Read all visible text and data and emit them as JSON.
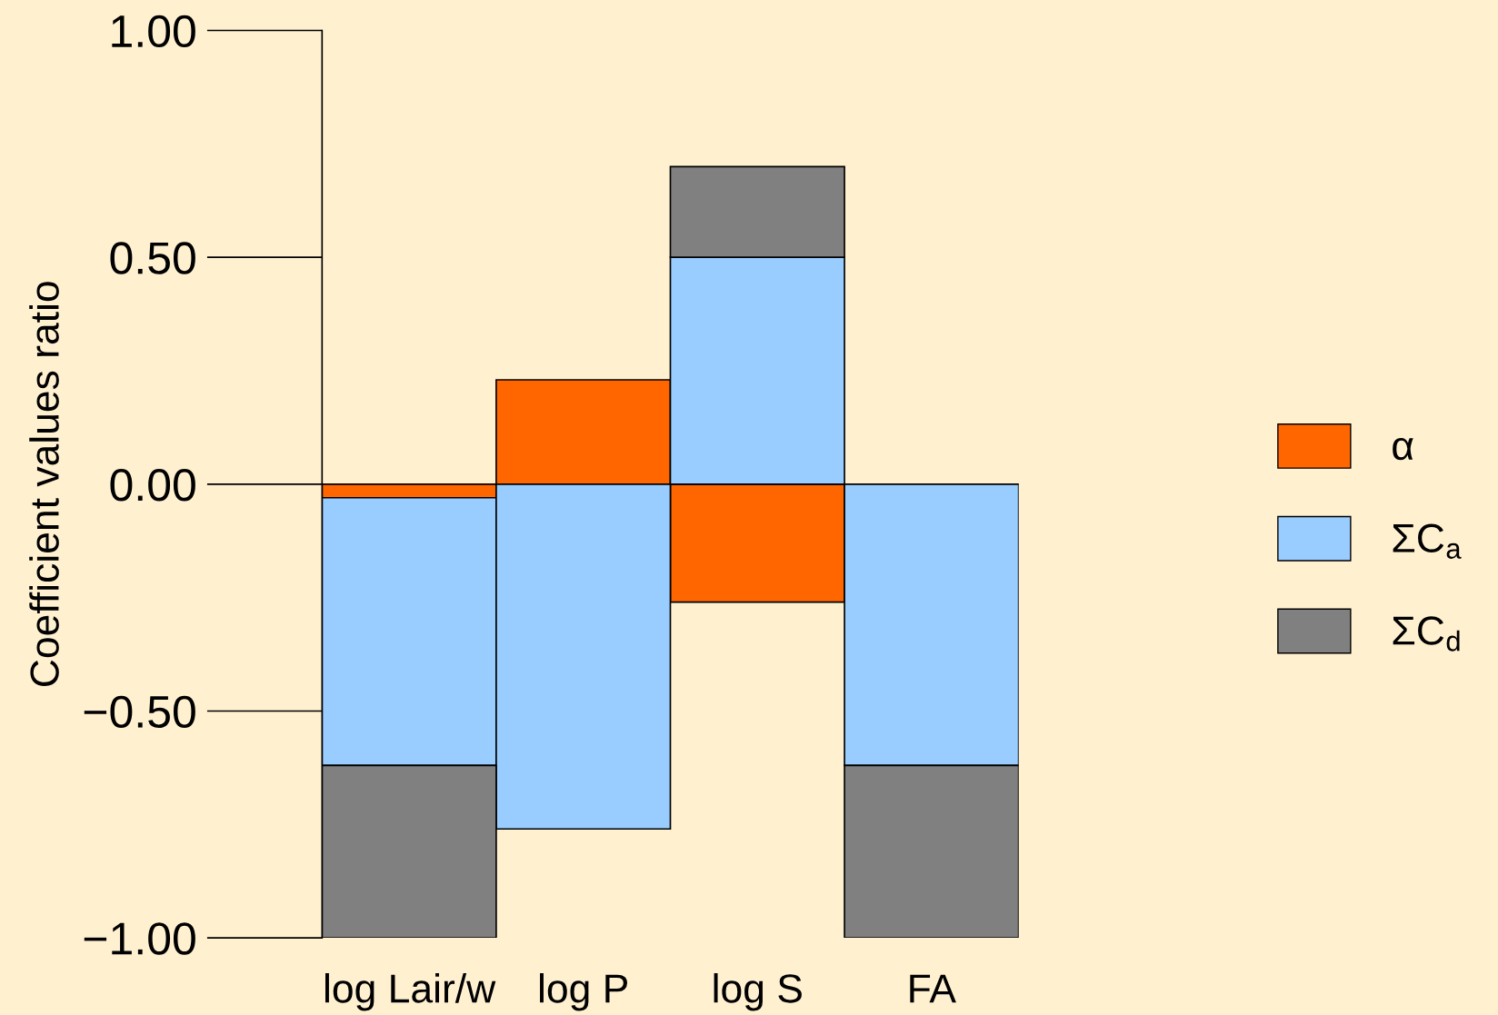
{
  "chart_data": {
    "type": "bar",
    "stacked": true,
    "ylabel": "Coefficient values ratio",
    "categories": [
      "log Lair/w",
      "log P",
      "log S",
      "FA"
    ],
    "series": [
      {
        "name": "α",
        "color": "#ff6600",
        "values": [
          -0.03,
          0.23,
          -0.26,
          null
        ]
      },
      {
        "name": "ΣC$_{a}$",
        "color": "#99ccff",
        "values": [
          -0.59,
          -0.76,
          0.5,
          -0.62
        ]
      },
      {
        "name": "ΣC$_{d}$",
        "color": "#808080",
        "values": [
          -0.38,
          null,
          0.2,
          -0.38
        ]
      }
    ],
    "ylim": [
      -1,
      1
    ],
    "yticks": [
      {
        "value": -1,
        "label": "−1.00"
      },
      {
        "value": -0.5,
        "label": "−0.50"
      },
      {
        "value": 0,
        "label": "0.00"
      },
      {
        "value": 0.5,
        "label": "0.50"
      },
      {
        "value": 1,
        "label": "1.00"
      }
    ],
    "ref_lines": [
      {
        "axis": "y",
        "value": 0,
        "color": "#000000"
      }
    ],
    "grid": false,
    "legend": "right"
  }
}
